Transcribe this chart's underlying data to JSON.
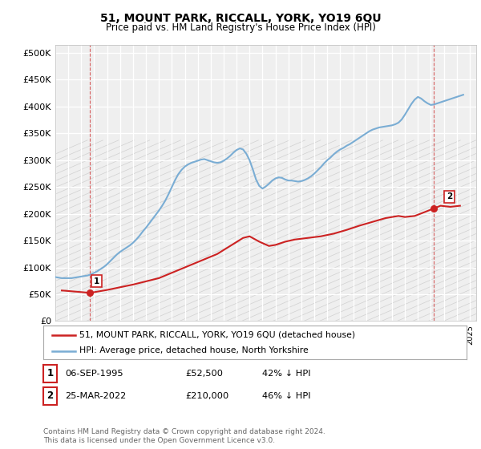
{
  "title": "51, MOUNT PARK, RICCALL, YORK, YO19 6QU",
  "subtitle": "Price paid vs. HM Land Registry's House Price Index (HPI)",
  "ytick_values": [
    0,
    50000,
    100000,
    150000,
    200000,
    250000,
    300000,
    350000,
    400000,
    450000,
    500000
  ],
  "ylim": [
    0,
    515000
  ],
  "xlim_start": 1993.0,
  "xlim_end": 2025.5,
  "hpi_color": "#7aadd4",
  "price_color": "#cc2222",
  "background_color": "#efefef",
  "sale1": {
    "year": 1995.68,
    "price": 52500,
    "label": "1"
  },
  "sale2": {
    "year": 2022.23,
    "price": 210000,
    "label": "2"
  },
  "legend_line1": "51, MOUNT PARK, RICCALL, YORK, YO19 6QU (detached house)",
  "legend_line2": "HPI: Average price, detached house, North Yorkshire",
  "table_row1": [
    "1",
    "06-SEP-1995",
    "£52,500",
    "42% ↓ HPI"
  ],
  "table_row2": [
    "2",
    "25-MAR-2022",
    "£210,000",
    "46% ↓ HPI"
  ],
  "footnote": "Contains HM Land Registry data © Crown copyright and database right 2024.\nThis data is licensed under the Open Government Licence v3.0.",
  "hpi_data_x": [
    1993.0,
    1993.25,
    1993.5,
    1993.75,
    1994.0,
    1994.25,
    1994.5,
    1994.75,
    1995.0,
    1995.25,
    1995.5,
    1995.75,
    1996.0,
    1996.25,
    1996.5,
    1996.75,
    1997.0,
    1997.25,
    1997.5,
    1997.75,
    1998.0,
    1998.25,
    1998.5,
    1998.75,
    1999.0,
    1999.25,
    1999.5,
    1999.75,
    2000.0,
    2000.25,
    2000.5,
    2000.75,
    2001.0,
    2001.25,
    2001.5,
    2001.75,
    2002.0,
    2002.25,
    2002.5,
    2002.75,
    2003.0,
    2003.25,
    2003.5,
    2003.75,
    2004.0,
    2004.25,
    2004.5,
    2004.75,
    2005.0,
    2005.25,
    2005.5,
    2005.75,
    2006.0,
    2006.25,
    2006.5,
    2006.75,
    2007.0,
    2007.25,
    2007.5,
    2007.75,
    2008.0,
    2008.25,
    2008.5,
    2008.75,
    2009.0,
    2009.25,
    2009.5,
    2009.75,
    2010.0,
    2010.25,
    2010.5,
    2010.75,
    2011.0,
    2011.25,
    2011.5,
    2011.75,
    2012.0,
    2012.25,
    2012.5,
    2012.75,
    2013.0,
    2013.25,
    2013.5,
    2013.75,
    2014.0,
    2014.25,
    2014.5,
    2014.75,
    2015.0,
    2015.25,
    2015.5,
    2015.75,
    2016.0,
    2016.25,
    2016.5,
    2016.75,
    2017.0,
    2017.25,
    2017.5,
    2017.75,
    2018.0,
    2018.25,
    2018.5,
    2018.75,
    2019.0,
    2019.25,
    2019.5,
    2019.75,
    2020.0,
    2020.25,
    2020.5,
    2020.75,
    2021.0,
    2021.25,
    2021.5,
    2021.75,
    2022.0,
    2022.25,
    2022.5,
    2022.75,
    2023.0,
    2023.25,
    2023.5,
    2023.75,
    2024.0,
    2024.25,
    2024.5
  ],
  "hpi_data_y": [
    82000,
    81000,
    80000,
    80000,
    80000,
    80000,
    81000,
    82000,
    83000,
    84000,
    85000,
    87000,
    90000,
    93000,
    97000,
    101000,
    106000,
    112000,
    118000,
    124000,
    129000,
    133000,
    137000,
    141000,
    146000,
    152000,
    159000,
    167000,
    174000,
    182000,
    190000,
    198000,
    206000,
    215000,
    225000,
    237000,
    250000,
    263000,
    274000,
    282000,
    288000,
    292000,
    295000,
    297000,
    299000,
    301000,
    302000,
    300000,
    298000,
    296000,
    295000,
    296000,
    299000,
    303000,
    308000,
    314000,
    319000,
    322000,
    320000,
    312000,
    300000,
    283000,
    264000,
    252000,
    247000,
    251000,
    256000,
    262000,
    266000,
    268000,
    267000,
    264000,
    262000,
    262000,
    261000,
    260000,
    261000,
    263000,
    266000,
    270000,
    275000,
    281000,
    287000,
    294000,
    300000,
    305000,
    311000,
    316000,
    320000,
    323000,
    327000,
    330000,
    334000,
    338000,
    342000,
    346000,
    350000,
    354000,
    357000,
    359000,
    361000,
    362000,
    363000,
    364000,
    365000,
    367000,
    370000,
    376000,
    385000,
    395000,
    405000,
    413000,
    418000,
    415000,
    410000,
    406000,
    403000,
    404000,
    406000,
    408000,
    410000,
    412000,
    414000,
    416000,
    418000,
    420000,
    422000
  ],
  "price_data_x": [
    1993.5,
    1995.0,
    1995.68,
    1997.0,
    1999.0,
    2001.0,
    2002.5,
    2004.0,
    2005.5,
    2006.5,
    2007.5,
    2008.0,
    2008.75,
    2009.5,
    2010.0,
    2010.75,
    2011.5,
    2012.5,
    2013.5,
    2014.5,
    2015.5,
    2016.5,
    2017.5,
    2018.5,
    2019.5,
    2020.0,
    2020.75,
    2021.5,
    2022.23,
    2022.75,
    2023.5,
    2024.25
  ],
  "price_data_y": [
    57000,
    54000,
    52500,
    58000,
    68000,
    80000,
    95000,
    110000,
    125000,
    140000,
    155000,
    158000,
    148000,
    140000,
    142000,
    148000,
    152000,
    155000,
    158000,
    163000,
    170000,
    178000,
    185000,
    192000,
    196000,
    194000,
    196000,
    203000,
    210000,
    215000,
    213000,
    215000
  ]
}
